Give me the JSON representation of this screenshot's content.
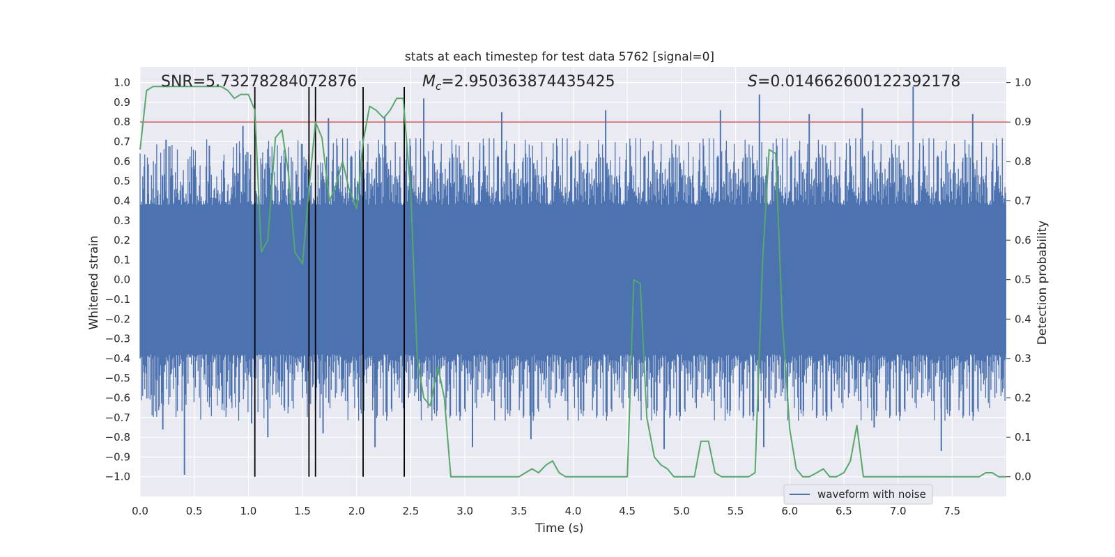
{
  "chart_data": {
    "type": "line",
    "title": "stats at each timestep for test data 5762 [signal=0]",
    "xlabel": "Time (s)",
    "ylabel": "Whitened strain",
    "y2label": "Detection probability",
    "xlim": [
      0.0,
      8.0
    ],
    "ylim": [
      -1.1,
      1.08
    ],
    "y2lim": [
      -0.05,
      1.04
    ],
    "xticks": [
      0.0,
      0.5,
      1.0,
      1.5,
      2.0,
      2.5,
      3.0,
      3.5,
      4.0,
      4.5,
      5.0,
      5.5,
      6.0,
      6.5,
      7.0,
      7.5
    ],
    "yticks": [
      1.0,
      0.9,
      0.8,
      0.7,
      0.6,
      0.5,
      0.4,
      0.3,
      0.2,
      0.1,
      0.0,
      -0.1,
      -0.2,
      -0.3,
      -0.4,
      -0.5,
      -0.6,
      -0.7,
      -0.8,
      -0.9,
      -1.0
    ],
    "y2ticks": [
      1.0,
      0.9,
      0.8,
      0.7,
      0.6,
      0.5,
      0.4,
      0.3,
      0.2,
      0.1,
      0.0
    ],
    "annotations": {
      "snr": "SNR=5.73278284072876",
      "mc_symbol": "M",
      "mc_sub": "c",
      "mc_value": "=2.950363874435425",
      "s_symbol": "S",
      "s_value": "=0.014662600122392178"
    },
    "threshold_probability": 0.9,
    "detection_times": [
      1.06,
      1.56,
      1.62,
      2.06,
      2.44
    ],
    "series": [
      {
        "name": "waveform with noise",
        "axis": "left",
        "color": "#4c72b0",
        "kind": "noise-band",
        "core_amplitude": 0.38,
        "typical_spike_amplitude": 0.6,
        "spikes": [
          {
            "x": 0.41,
            "y": -0.99
          },
          {
            "x": 0.21,
            "y": -0.76
          },
          {
            "x": 0.24,
            "y": 0.71
          },
          {
            "x": 0.64,
            "y": 0.68
          },
          {
            "x": 0.95,
            "y": 0.78
          },
          {
            "x": 1.03,
            "y": -0.73
          },
          {
            "x": 1.18,
            "y": -0.8
          },
          {
            "x": 1.69,
            "y": -0.78
          },
          {
            "x": 1.74,
            "y": 0.82
          },
          {
            "x": 2.17,
            "y": -0.85
          },
          {
            "x": 2.26,
            "y": 0.83
          },
          {
            "x": 2.62,
            "y": 0.92
          },
          {
            "x": 3.07,
            "y": -0.85
          },
          {
            "x": 3.34,
            "y": 0.85
          },
          {
            "x": 3.61,
            "y": -0.81
          },
          {
            "x": 4.3,
            "y": 0.86
          },
          {
            "x": 4.84,
            "y": -0.86
          },
          {
            "x": 5.36,
            "y": 0.86
          },
          {
            "x": 5.72,
            "y": 0.94
          },
          {
            "x": 5.76,
            "y": -0.85
          },
          {
            "x": 6.67,
            "y": 0.87
          },
          {
            "x": 7.14,
            "y": 0.98
          },
          {
            "x": 7.4,
            "y": -0.87
          },
          {
            "x": 6.18,
            "y": 0.84
          },
          {
            "x": 6.78,
            "y": -0.75
          },
          {
            "x": 7.69,
            "y": 0.84
          }
        ]
      },
      {
        "name": "detection probability",
        "axis": "right",
        "color": "#55a868",
        "x": [
          0.0,
          0.06,
          0.12,
          0.18,
          0.25,
          0.31,
          0.37,
          0.43,
          0.5,
          0.56,
          0.62,
          0.68,
          0.75,
          0.81,
          0.87,
          0.93,
          1.0,
          1.06,
          1.12,
          1.18,
          1.25,
          1.31,
          1.37,
          1.43,
          1.5,
          1.56,
          1.62,
          1.68,
          1.75,
          1.81,
          1.87,
          1.93,
          2.0,
          2.06,
          2.12,
          2.18,
          2.25,
          2.31,
          2.37,
          2.43,
          2.5,
          2.56,
          2.62,
          2.68,
          2.75,
          2.81,
          2.87,
          2.93,
          3.0,
          3.06,
          3.12,
          3.18,
          3.25,
          3.31,
          3.37,
          3.43,
          3.5,
          3.56,
          3.62,
          3.68,
          3.75,
          3.81,
          3.87,
          3.93,
          4.0,
          4.06,
          4.12,
          4.18,
          4.25,
          4.31,
          4.37,
          4.43,
          4.5,
          4.56,
          4.62,
          4.68,
          4.75,
          4.81,
          4.87,
          4.93,
          5.0,
          5.06,
          5.12,
          5.18,
          5.25,
          5.31,
          5.37,
          5.43,
          5.5,
          5.56,
          5.62,
          5.68,
          5.75,
          5.81,
          5.87,
          5.93,
          6.0,
          6.06,
          6.12,
          6.18,
          6.25,
          6.31,
          6.37,
          6.43,
          6.5,
          6.56,
          6.62,
          6.68,
          6.75,
          6.81,
          6.87,
          6.93,
          7.0,
          7.06,
          7.12,
          7.18,
          7.25,
          7.31,
          7.37,
          7.43,
          7.5,
          7.56,
          7.62,
          7.68,
          7.75,
          7.81,
          7.87,
          7.93,
          8.0
        ],
        "y": [
          0.83,
          0.98,
          0.99,
          0.99,
          0.99,
          0.99,
          0.99,
          0.99,
          0.99,
          0.99,
          0.99,
          0.99,
          0.99,
          0.98,
          0.96,
          0.97,
          0.97,
          0.93,
          0.57,
          0.6,
          0.86,
          0.88,
          0.77,
          0.57,
          0.54,
          0.73,
          0.9,
          0.86,
          0.7,
          0.74,
          0.8,
          0.73,
          0.68,
          0.85,
          0.94,
          0.93,
          0.91,
          0.93,
          0.96,
          0.96,
          0.72,
          0.3,
          0.2,
          0.18,
          0.28,
          0.2,
          0.0,
          0.0,
          0.0,
          0.0,
          0.0,
          0.0,
          0.0,
          0.0,
          0.0,
          0.0,
          0.0,
          0.01,
          0.02,
          0.01,
          0.03,
          0.04,
          0.01,
          0.0,
          0.0,
          0.0,
          0.0,
          0.0,
          0.0,
          0.0,
          0.0,
          0.0,
          0.0,
          0.5,
          0.49,
          0.15,
          0.05,
          0.03,
          0.02,
          0.0,
          0.0,
          0.0,
          0.0,
          0.09,
          0.09,
          0.01,
          0.0,
          0.0,
          0.0,
          0.0,
          0.0,
          0.01,
          0.55,
          0.83,
          0.82,
          0.4,
          0.12,
          0.02,
          0.0,
          0.0,
          0.01,
          0.02,
          0.0,
          0.0,
          0.01,
          0.04,
          0.13,
          0.0,
          0.0,
          0.0,
          0.0,
          0.0,
          0.0,
          0.0,
          0.0,
          0.0,
          0.0,
          0.0,
          0.0,
          0.0,
          0.0,
          0.0,
          0.0,
          0.0,
          0.0,
          0.01,
          0.01,
          0.0,
          0.0
        ]
      }
    ],
    "legend": {
      "entries": [
        "waveform with noise"
      ],
      "placement": "lower-right"
    },
    "colors": {
      "background": "#eaeaf2",
      "grid": "#ffffff",
      "waveform": "#4c72b0",
      "probability": "#55a868",
      "threshold": "#c44e52",
      "detection": "#000000"
    }
  }
}
